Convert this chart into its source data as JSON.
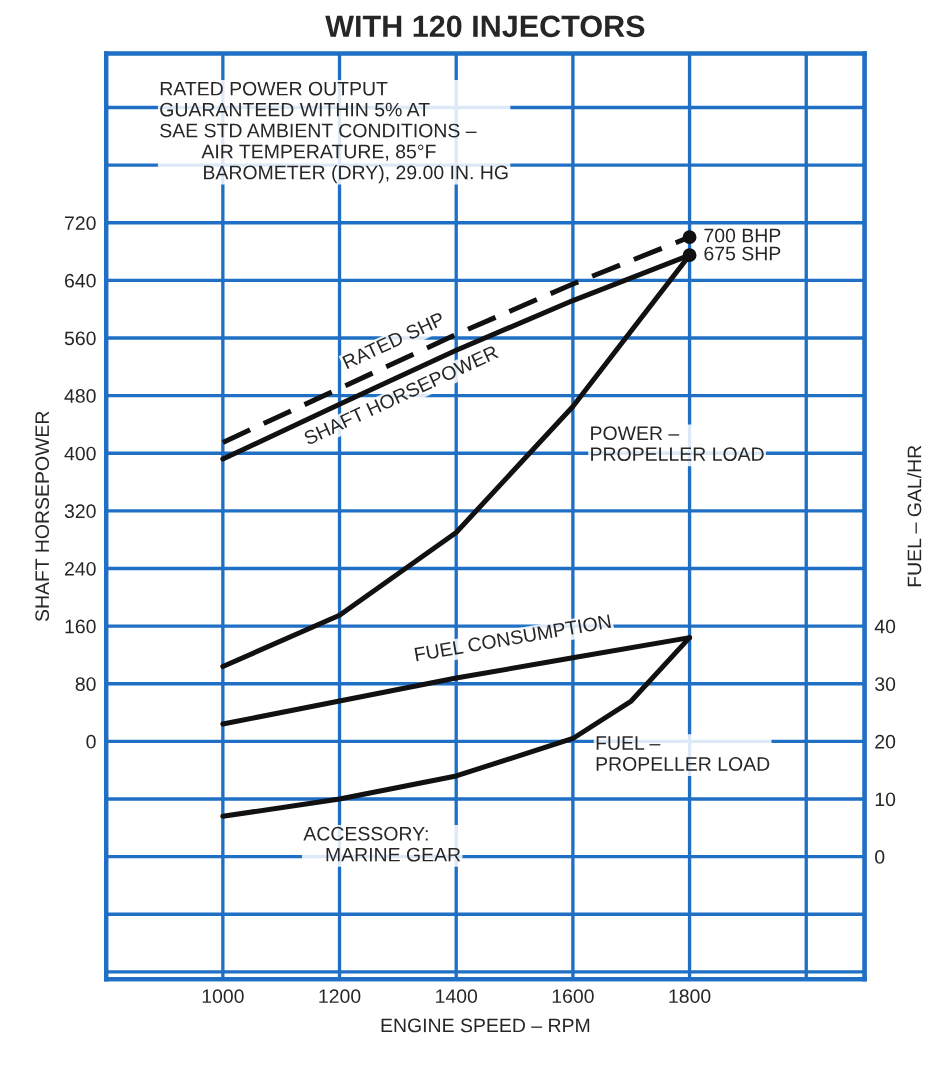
{
  "chart_data": {
    "type": "line",
    "title": "WITH 120 INJECTORS",
    "xlabel": "ENGINE SPEED – RPM",
    "ylabel": "SHAFT HORSEPOWER",
    "y2label": "FUEL – GAL/HR",
    "x": [
      1000,
      1200,
      1400,
      1600,
      1800
    ],
    "series": [
      {
        "name": "RATED SHP",
        "color": "#111111",
        "line_style": "dashed",
        "values": [
          415,
          490,
          565,
          635,
          700
        ]
      },
      {
        "name": "SHAFT HORSEPOWER",
        "color": "#111111",
        "line_style": "solid",
        "values": [
          392,
          468,
          543,
          612,
          675
        ]
      },
      {
        "name": "POWER –\nPROPELLER LOAD",
        "color": "#111111",
        "line_style": "solid",
        "values": [
          104,
          175,
          290,
          465,
          675
        ]
      },
      {
        "name": "FUEL CONSUMPTION",
        "color": "#111111",
        "line_style": "solid",
        "axis": "y2",
        "values": [
          23,
          27,
          31,
          34.5,
          38
        ]
      },
      {
        "name": "FUEL –\nPROPELLER LOAD",
        "color": "#111111",
        "line_style": "solid",
        "axis": "y2",
        "x": [
          1000,
          1200,
          1400,
          1600,
          1700,
          1800
        ],
        "values": [
          7,
          10,
          14,
          20.5,
          27,
          38
        ]
      }
    ],
    "xlim": [
      800,
      2100
    ],
    "xticks": [
      {
        "value": 800,
        "label": null
      },
      1000,
      1200,
      1400,
      1600,
      1800,
      {
        "value": 2000,
        "label": null
      }
    ],
    "ylim": [
      -330,
      955
    ],
    "yticks": [
      {
        "value": -320,
        "label": null
      },
      {
        "value": -240,
        "label": null
      },
      {
        "value": -160,
        "label": null
      },
      {
        "value": -80,
        "label": null
      },
      0,
      80,
      160,
      240,
      320,
      400,
      480,
      560,
      640,
      720,
      {
        "value": 800,
        "label": null
      },
      {
        "value": 880,
        "label": null
      }
    ],
    "y2lim": [
      -21.25,
      139.375
    ],
    "y2ticks": [
      0,
      10,
      20,
      30,
      40
    ],
    "grid": true,
    "legend": false,
    "marker": "none",
    "annotations": [
      "RATED POWER OUTPUT\nGUARANTEED WITHIN 5% AT\nSAE STD AMBIENT CONDITIONS –\n        AIR TEMPERATURE, 85°F\n        BAROMETER (DRY), 29.00 IN. HG",
      {
        "text": "700 BHP",
        "x": 1800,
        "y": 700
      },
      {
        "text": "675 SHP",
        "x": 1800,
        "y": 675
      },
      "ACCESSORY:\n    MARINE GEAR"
    ]
  }
}
